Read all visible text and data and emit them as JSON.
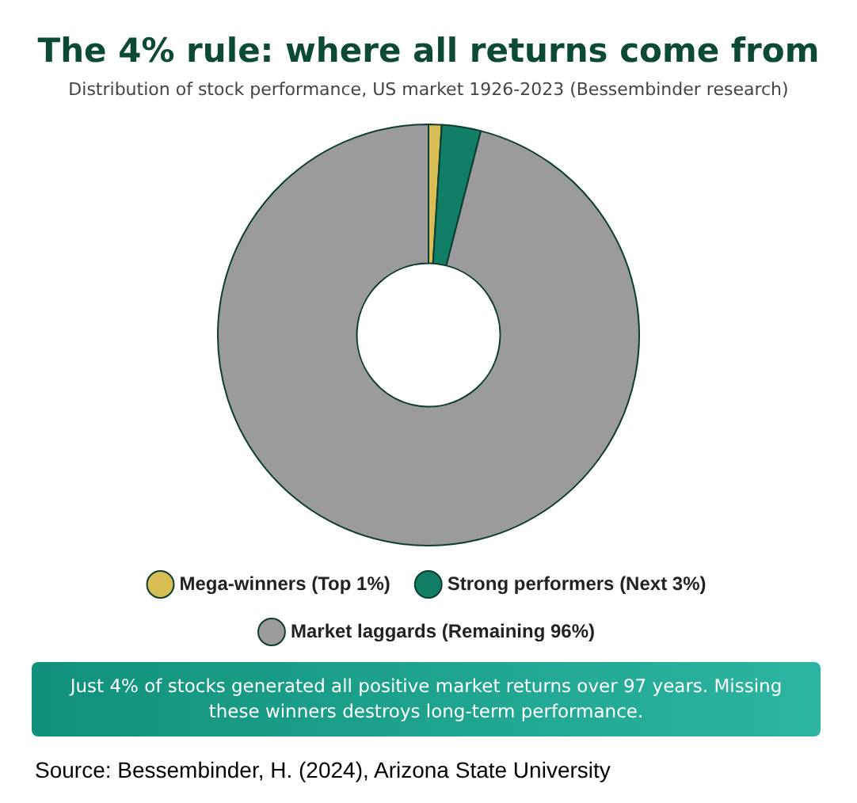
{
  "chart_data": {
    "type": "donut",
    "title": "The 4% rule: where all returns come from",
    "subtitle": "Distribution of stock performance, US market 1926-2023 (Bessembinder research)",
    "categories": [
      "Mega-winners (Top 1%)",
      "Strong performers (Next 3%)",
      "Market laggards (Remaining 96%)"
    ],
    "values": [
      1,
      3,
      96
    ],
    "colors": [
      "#d8bd55",
      "#117e68",
      "#9b9b9e"
    ],
    "legend": "bottom",
    "annotations": [
      "Just 4% of stocks generated all positive market returns over 97 years. Missing these winners destroys long-term performance.",
      "Source: Bessembinder, H. (2024), Arizona State University"
    ]
  }
}
